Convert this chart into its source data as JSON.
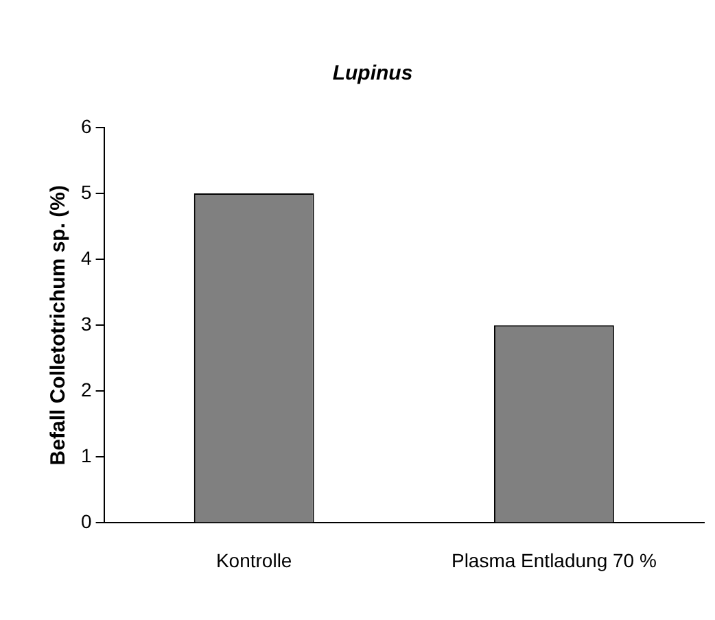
{
  "chart_data": {
    "type": "bar",
    "title": "Lupinus",
    "ylabel": "Befall Colletotrichum sp. (%)",
    "categories": [
      "Kontrolle",
      "Plasma Entladung 70 %"
    ],
    "values": [
      5,
      3
    ],
    "color": "#808080",
    "ylim": [
      0,
      6
    ],
    "yticks": [
      0,
      1,
      2,
      3,
      4,
      5,
      6
    ],
    "grid": false,
    "legend": false
  }
}
